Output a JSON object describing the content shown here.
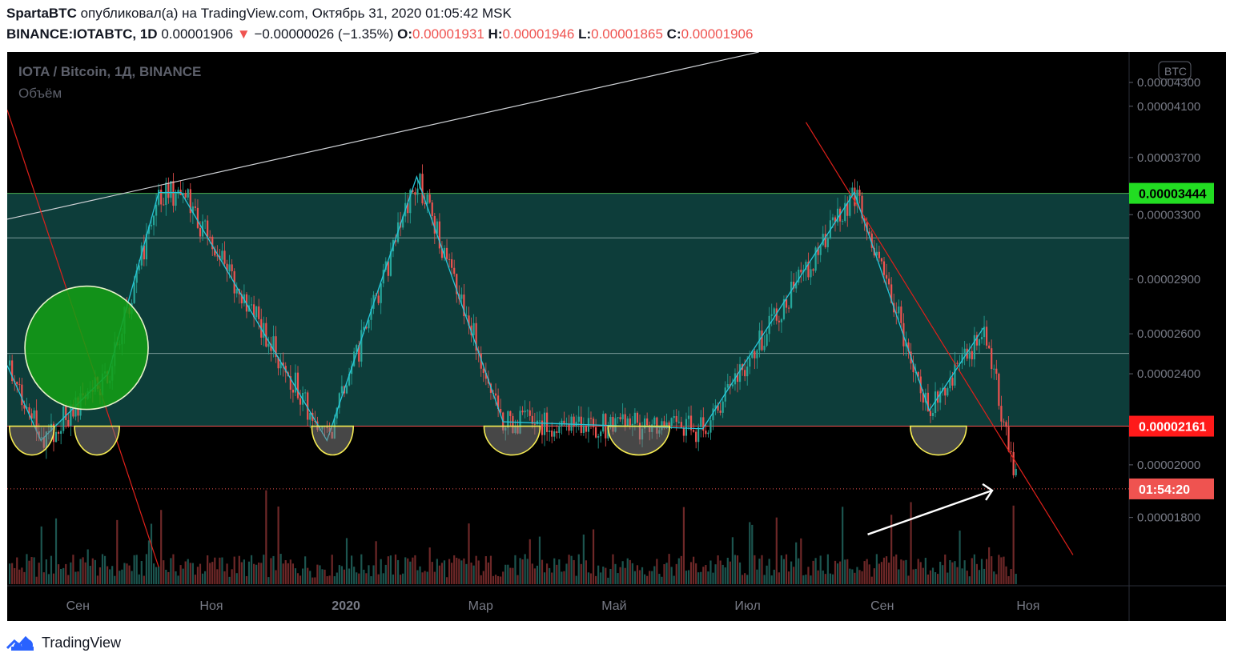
{
  "header": {
    "author": "SpartaBTC",
    "published_text": "опубликовал(а) на TradingView.com, Октябрь 31, 2020 01:05:42 MSK",
    "symbol": "BINANCE:IOTABTC, 1D",
    "last_price": "0.00001906",
    "arrow": "▼",
    "change": "−0.00000026 (−1.35%)",
    "open_label": "O:",
    "open": "0.00001931",
    "high_label": "H:",
    "high": "0.00001946",
    "low_label": "L:",
    "low": "0.00001865",
    "close_label": "C:",
    "close": "0.00001906"
  },
  "legend": {
    "title": "IOTA / Bitcoin, 1Д, BINANCE",
    "volume": "Объём"
  },
  "currency_badge": "BTC",
  "footer": {
    "brand": "TradingView"
  },
  "colors": {
    "up": "#26a69a",
    "down": "#ef5350",
    "zone": "#0d3d3a",
    "zigzag": "#26c6da",
    "cup": "#f5eb52",
    "circle": "#1a9e1a",
    "resist_badge": "#22dd22",
    "support_badge": "#ff1a1a"
  },
  "chart_data": {
    "type": "candlestick",
    "title": "IOTA / Bitcoin, 1Д, BINANCE",
    "x_tick_labels": [
      "Сен",
      "Ноя",
      "2020",
      "Мар",
      "Май",
      "Июл",
      "Сен",
      "Ноя"
    ],
    "y_tick_labels": [
      "0.00004300",
      "0.00004100",
      "0.00003700",
      "0.00003300",
      "0.00002900",
      "0.00002600",
      "0.00002400",
      "0.00002000",
      "0.00001800"
    ],
    "y_ticks": [
      4.3e-05,
      4.1e-05,
      3.7e-05,
      3.3e-05,
      2.9e-05,
      2.6e-05,
      2.4e-05,
      2e-05,
      1.8e-05
    ],
    "y_scale": "log",
    "ylim": [
      1.57e-05,
      4.57e-05
    ],
    "price_labels": {
      "resistance": "0.00003444",
      "support": "0.00002161",
      "countdown": "01:54:20"
    },
    "zone": {
      "top": 3.444e-05,
      "bottom": 2.161e-05,
      "mid_lines": [
        3.15e-05,
        2.5e-05
      ]
    },
    "current_price": 1.906e-05,
    "zigzag_points": [
      {
        "x": 0.0,
        "y": 2.44e-05
      },
      {
        "x": 0.03,
        "y": 2.1e-05
      },
      {
        "x": 0.09,
        "y": 2.4e-05
      },
      {
        "x": 0.135,
        "y": 3.45e-05
      },
      {
        "x": 0.155,
        "y": 3.45e-05
      },
      {
        "x": 0.285,
        "y": 2.1e-05
      },
      {
        "x": 0.365,
        "y": 3.56e-05
      },
      {
        "x": 0.442,
        "y": 2.18e-05
      },
      {
        "x": 0.62,
        "y": 2.15e-05
      },
      {
        "x": 0.755,
        "y": 3.45e-05
      },
      {
        "x": 0.822,
        "y": 2.23e-05
      },
      {
        "x": 0.87,
        "y": 2.63e-05
      }
    ],
    "trendlines": [
      {
        "name": "upper-white",
        "x1": 0.0,
        "y1": 3.27e-05,
        "x2": 0.67,
        "y2": 4.57e-05
      },
      {
        "name": "red-left",
        "x1": 0.0,
        "y1": 4.07e-05,
        "x2": 0.135,
        "y2": 1.63e-05
      },
      {
        "name": "red-right",
        "x1": 0.712,
        "y1": 3.97e-05,
        "x2": 0.95,
        "y2": 1.67e-05
      }
    ],
    "cups": [
      {
        "x": 0.022,
        "w": 0.04
      },
      {
        "x": 0.08,
        "w": 0.04
      },
      {
        "x": 0.29,
        "w": 0.037
      },
      {
        "x": 0.45,
        "w": 0.05
      },
      {
        "x": 0.563,
        "w": 0.055
      },
      {
        "x": 0.83,
        "w": 0.05
      }
    ],
    "circle": {
      "x": 0.07,
      "y": 2.52e-05
    }
  }
}
